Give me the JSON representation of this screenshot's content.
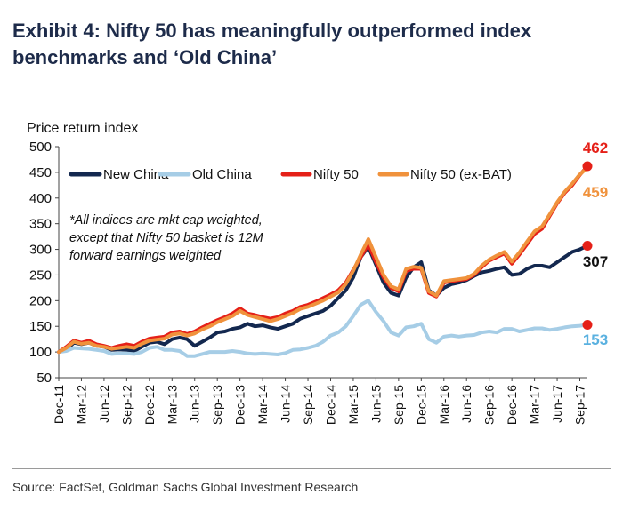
{
  "header": {
    "title_line1": "Exhibit 4: Nifty 50 has meaningfully outperformed index",
    "title_line2": "benchmarks and ‘Old China’"
  },
  "footer": {
    "source": "Source: FactSet, Goldman Sachs Global Investment Research"
  },
  "chart_data": {
    "type": "line",
    "ylabel": "Price return index",
    "ylim": [
      50,
      500
    ],
    "yticks": [
      50,
      100,
      150,
      200,
      250,
      300,
      350,
      400,
      450,
      500
    ],
    "x_range": [
      0,
      70
    ],
    "xticks": [
      {
        "label": "Dec-11",
        "x": 0
      },
      {
        "label": "Mar-12",
        "x": 3
      },
      {
        "label": "Jun-12",
        "x": 6
      },
      {
        "label": "Sep-12",
        "x": 9
      },
      {
        "label": "Dec-12",
        "x": 12
      },
      {
        "label": "Mar-13",
        "x": 15
      },
      {
        "label": "Jun-13",
        "x": 18
      },
      {
        "label": "Sep-13",
        "x": 21
      },
      {
        "label": "Dec-13",
        "x": 24
      },
      {
        "label": "Mar-14",
        "x": 27
      },
      {
        "label": "Jun-14",
        "x": 30
      },
      {
        "label": "Sep-14",
        "x": 33
      },
      {
        "label": "Dec-14",
        "x": 36
      },
      {
        "label": "Mar-15",
        "x": 39
      },
      {
        "label": "Jun-15",
        "x": 42
      },
      {
        "label": "Sep-15",
        "x": 45
      },
      {
        "label": "Dec-15",
        "x": 48
      },
      {
        "label": "Mar-16",
        "x": 51
      },
      {
        "label": "Jun-16",
        "x": 54
      },
      {
        "label": "Sep-16",
        "x": 57
      },
      {
        "label": "Dec-16",
        "x": 60
      },
      {
        "label": "Mar-17",
        "x": 63
      },
      {
        "label": "Jun-17",
        "x": 66
      },
      {
        "label": "Sep-17",
        "x": 69
      }
    ],
    "annotation": [
      "*All indices are mkt cap weighted,",
      "except that Nifty 50 basket is 12M",
      "forward earnings weighted"
    ],
    "series": [
      {
        "name": "New China",
        "color": "#13284f",
        "width": 4,
        "end_label": "307",
        "end_label_color": "#111111",
        "end_marker": true,
        "points": [
          [
            0,
            100
          ],
          [
            1,
            105
          ],
          [
            2,
            118
          ],
          [
            3,
            115
          ],
          [
            4,
            118
          ],
          [
            5,
            112
          ],
          [
            6,
            110
          ],
          [
            7,
            104
          ],
          [
            8,
            105
          ],
          [
            9,
            104
          ],
          [
            10,
            102
          ],
          [
            11,
            110
          ],
          [
            12,
            118
          ],
          [
            13,
            120
          ],
          [
            14,
            115
          ],
          [
            15,
            125
          ],
          [
            16,
            128
          ],
          [
            17,
            125
          ],
          [
            18,
            112
          ],
          [
            19,
            120
          ],
          [
            20,
            128
          ],
          [
            21,
            138
          ],
          [
            22,
            140
          ],
          [
            23,
            145
          ],
          [
            24,
            148
          ],
          [
            25,
            155
          ],
          [
            26,
            150
          ],
          [
            27,
            152
          ],
          [
            28,
            148
          ],
          [
            29,
            145
          ],
          [
            30,
            150
          ],
          [
            31,
            155
          ],
          [
            32,
            165
          ],
          [
            33,
            170
          ],
          [
            34,
            175
          ],
          [
            35,
            180
          ],
          [
            36,
            190
          ],
          [
            37,
            205
          ],
          [
            38,
            220
          ],
          [
            39,
            245
          ],
          [
            40,
            285
          ],
          [
            41,
            305
          ],
          [
            42,
            270
          ],
          [
            43,
            235
          ],
          [
            44,
            215
          ],
          [
            45,
            210
          ],
          [
            46,
            245
          ],
          [
            47,
            265
          ],
          [
            48,
            275
          ],
          [
            49,
            220
          ],
          [
            50,
            210
          ],
          [
            51,
            225
          ],
          [
            52,
            232
          ],
          [
            53,
            235
          ],
          [
            54,
            240
          ],
          [
            55,
            248
          ],
          [
            56,
            255
          ],
          [
            57,
            258
          ],
          [
            58,
            262
          ],
          [
            59,
            265
          ],
          [
            60,
            250
          ],
          [
            61,
            252
          ],
          [
            62,
            262
          ],
          [
            63,
            268
          ],
          [
            64,
            268
          ],
          [
            65,
            265
          ],
          [
            66,
            275
          ],
          [
            67,
            285
          ],
          [
            68,
            295
          ],
          [
            69,
            300
          ],
          [
            70,
            307
          ]
        ]
      },
      {
        "name": "Old China",
        "color": "#a6cde6",
        "width": 4,
        "end_label": "153",
        "end_label_color": "#5ab1e0",
        "end_marker": true,
        "points": [
          [
            0,
            100
          ],
          [
            1,
            102
          ],
          [
            2,
            108
          ],
          [
            3,
            107
          ],
          [
            4,
            106
          ],
          [
            5,
            104
          ],
          [
            6,
            102
          ],
          [
            7,
            96
          ],
          [
            8,
            97
          ],
          [
            9,
            97
          ],
          [
            10,
            96
          ],
          [
            11,
            100
          ],
          [
            12,
            108
          ],
          [
            13,
            110
          ],
          [
            14,
            104
          ],
          [
            15,
            104
          ],
          [
            16,
            102
          ],
          [
            17,
            92
          ],
          [
            18,
            92
          ],
          [
            19,
            96
          ],
          [
            20,
            100
          ],
          [
            21,
            100
          ],
          [
            22,
            100
          ],
          [
            23,
            102
          ],
          [
            24,
            100
          ],
          [
            25,
            97
          ],
          [
            26,
            96
          ],
          [
            27,
            97
          ],
          [
            28,
            96
          ],
          [
            29,
            95
          ],
          [
            30,
            98
          ],
          [
            31,
            104
          ],
          [
            32,
            105
          ],
          [
            33,
            108
          ],
          [
            34,
            112
          ],
          [
            35,
            120
          ],
          [
            36,
            132
          ],
          [
            37,
            138
          ],
          [
            38,
            150
          ],
          [
            39,
            170
          ],
          [
            40,
            192
          ],
          [
            41,
            200
          ],
          [
            42,
            178
          ],
          [
            43,
            160
          ],
          [
            44,
            138
          ],
          [
            45,
            132
          ],
          [
            46,
            148
          ],
          [
            47,
            150
          ],
          [
            48,
            155
          ],
          [
            49,
            125
          ],
          [
            50,
            118
          ],
          [
            51,
            130
          ],
          [
            52,
            132
          ],
          [
            53,
            130
          ],
          [
            54,
            132
          ],
          [
            55,
            133
          ],
          [
            56,
            138
          ],
          [
            57,
            140
          ],
          [
            58,
            138
          ],
          [
            59,
            145
          ],
          [
            60,
            145
          ],
          [
            61,
            140
          ],
          [
            62,
            143
          ],
          [
            63,
            146
          ],
          [
            64,
            146
          ],
          [
            65,
            143
          ],
          [
            66,
            145
          ],
          [
            67,
            148
          ],
          [
            68,
            150
          ],
          [
            69,
            151
          ],
          [
            70,
            153
          ]
        ]
      },
      {
        "name": "Nifty 50",
        "color": "#e52018",
        "width": 4,
        "end_label": "462",
        "end_label_color": "#e52018",
        "end_marker": true,
        "points": [
          [
            0,
            100
          ],
          [
            1,
            110
          ],
          [
            2,
            122
          ],
          [
            3,
            118
          ],
          [
            4,
            122
          ],
          [
            5,
            115
          ],
          [
            6,
            112
          ],
          [
            7,
            108
          ],
          [
            8,
            112
          ],
          [
            9,
            115
          ],
          [
            10,
            112
          ],
          [
            11,
            120
          ],
          [
            12,
            126
          ],
          [
            13,
            128
          ],
          [
            14,
            130
          ],
          [
            15,
            138
          ],
          [
            16,
            140
          ],
          [
            17,
            135
          ],
          [
            18,
            140
          ],
          [
            19,
            148
          ],
          [
            20,
            155
          ],
          [
            21,
            162
          ],
          [
            22,
            168
          ],
          [
            23,
            175
          ],
          [
            24,
            185
          ],
          [
            25,
            175
          ],
          [
            26,
            172
          ],
          [
            27,
            168
          ],
          [
            28,
            165
          ],
          [
            29,
            168
          ],
          [
            30,
            175
          ],
          [
            31,
            180
          ],
          [
            32,
            188
          ],
          [
            33,
            192
          ],
          [
            34,
            198
          ],
          [
            35,
            205
          ],
          [
            36,
            212
          ],
          [
            37,
            220
          ],
          [
            38,
            235
          ],
          [
            39,
            260
          ],
          [
            40,
            285
          ],
          [
            41,
            310
          ],
          [
            42,
            275
          ],
          [
            43,
            245
          ],
          [
            44,
            225
          ],
          [
            45,
            218
          ],
          [
            46,
            258
          ],
          [
            47,
            262
          ],
          [
            48,
            262
          ],
          [
            49,
            215
          ],
          [
            50,
            208
          ],
          [
            51,
            235
          ],
          [
            52,
            238
          ],
          [
            53,
            240
          ],
          [
            54,
            242
          ],
          [
            55,
            250
          ],
          [
            56,
            265
          ],
          [
            57,
            278
          ],
          [
            58,
            285
          ],
          [
            59,
            292
          ],
          [
            60,
            272
          ],
          [
            61,
            290
          ],
          [
            62,
            310
          ],
          [
            63,
            330
          ],
          [
            64,
            340
          ],
          [
            65,
            365
          ],
          [
            66,
            390
          ],
          [
            67,
            410
          ],
          [
            68,
            425
          ],
          [
            69,
            445
          ],
          [
            70,
            462
          ]
        ]
      },
      {
        "name": "Nifty 50 (ex-BAT)",
        "color": "#f0923c",
        "width": 4,
        "end_label": "459",
        "end_label_color": "#f0923c",
        "end_marker": false,
        "points": [
          [
            0,
            100
          ],
          [
            1,
            108
          ],
          [
            2,
            120
          ],
          [
            3,
            116
          ],
          [
            4,
            118
          ],
          [
            5,
            112
          ],
          [
            6,
            110
          ],
          [
            7,
            106
          ],
          [
            8,
            108
          ],
          [
            9,
            110
          ],
          [
            10,
            108
          ],
          [
            11,
            116
          ],
          [
            12,
            122
          ],
          [
            13,
            124
          ],
          [
            14,
            126
          ],
          [
            15,
            134
          ],
          [
            16,
            136
          ],
          [
            17,
            132
          ],
          [
            18,
            136
          ],
          [
            19,
            144
          ],
          [
            20,
            150
          ],
          [
            21,
            158
          ],
          [
            22,
            164
          ],
          [
            23,
            170
          ],
          [
            24,
            180
          ],
          [
            25,
            172
          ],
          [
            26,
            168
          ],
          [
            27,
            164
          ],
          [
            28,
            160
          ],
          [
            29,
            164
          ],
          [
            30,
            170
          ],
          [
            31,
            176
          ],
          [
            32,
            184
          ],
          [
            33,
            188
          ],
          [
            34,
            194
          ],
          [
            35,
            200
          ],
          [
            36,
            208
          ],
          [
            37,
            216
          ],
          [
            38,
            232
          ],
          [
            39,
            258
          ],
          [
            40,
            290
          ],
          [
            41,
            320
          ],
          [
            42,
            285
          ],
          [
            43,
            250
          ],
          [
            44,
            228
          ],
          [
            45,
            222
          ],
          [
            46,
            262
          ],
          [
            47,
            266
          ],
          [
            48,
            264
          ],
          [
            49,
            218
          ],
          [
            50,
            210
          ],
          [
            51,
            238
          ],
          [
            52,
            240
          ],
          [
            53,
            242
          ],
          [
            54,
            244
          ],
          [
            55,
            252
          ],
          [
            56,
            268
          ],
          [
            57,
            280
          ],
          [
            58,
            288
          ],
          [
            59,
            295
          ],
          [
            60,
            276
          ],
          [
            61,
            294
          ],
          [
            62,
            315
          ],
          [
            63,
            335
          ],
          [
            64,
            345
          ],
          [
            65,
            368
          ],
          [
            66,
            392
          ],
          [
            67,
            412
          ],
          [
            68,
            428
          ],
          [
            69,
            446
          ],
          [
            70,
            459
          ]
        ]
      }
    ]
  }
}
